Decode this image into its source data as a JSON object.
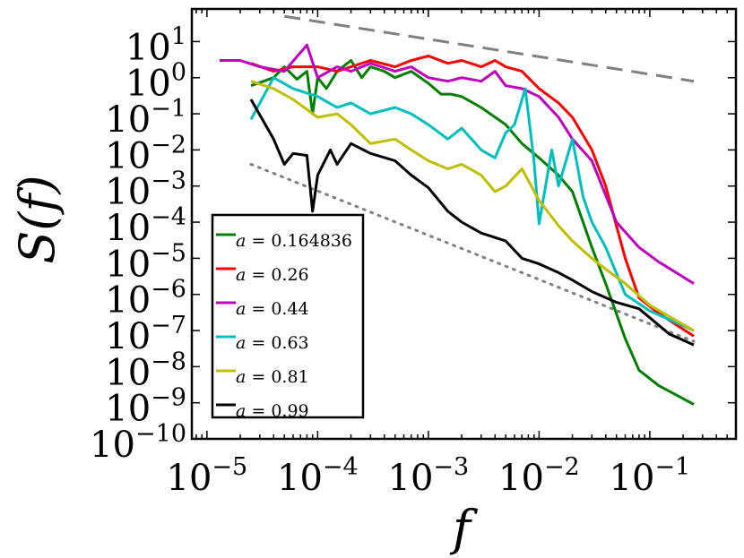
{
  "chart_data": {
    "type": "line",
    "xscale": "log",
    "yscale": "log",
    "xlim": [
      7.3e-06,
      0.6
    ],
    "ylim": [
      1e-10,
      80
    ],
    "xlabel": "f",
    "ylabel": "S(f)",
    "x_tick_exponents": [
      -5,
      -4,
      -3,
      -2,
      -1
    ],
    "y_tick_exponents": [
      1,
      0,
      -1,
      -2,
      -3,
      -4,
      -5,
      -6,
      -7,
      -8,
      -9,
      -10
    ],
    "tick_base": "10",
    "legend": {
      "location": "lower-left"
    },
    "series": [
      {
        "name": "a = 0.164836",
        "var": "a",
        "value": "0.164836",
        "color": "#008000",
        "points": [
          [
            2.5e-05,
            0.6
          ],
          [
            4e-05,
            1.0
          ],
          [
            5e-05,
            2.0
          ],
          [
            6.5e-05,
            0.9
          ],
          [
            8e-05,
            1.5
          ],
          [
            9e-05,
            0.1
          ],
          [
            0.0001,
            1.0
          ],
          [
            0.00012,
            0.5
          ],
          [
            0.00015,
            1.5
          ],
          [
            0.0002,
            3.0
          ],
          [
            0.00025,
            1.0
          ],
          [
            0.0003,
            2.0
          ],
          [
            0.0004,
            1.5
          ],
          [
            0.0005,
            1.0
          ],
          [
            0.0007,
            1.5
          ],
          [
            0.001,
            0.7
          ],
          [
            0.0013,
            0.35
          ],
          [
            0.0016,
            0.35
          ],
          [
            0.002,
            0.3
          ],
          [
            0.003,
            0.15
          ],
          [
            0.005,
            0.05
          ],
          [
            0.007,
            0.015
          ],
          [
            0.01,
            0.006
          ],
          [
            0.015,
            0.002
          ],
          [
            0.02,
            0.0007
          ],
          [
            0.03,
            2e-05
          ],
          [
            0.04,
            2e-06
          ],
          [
            0.06,
            6e-08
          ],
          [
            0.08,
            8e-09
          ],
          [
            0.12,
            3e-09
          ],
          [
            0.25,
            9e-10
          ]
        ]
      },
      {
        "name": "a = 0.26",
        "var": "a",
        "value": "0.26",
        "color": "#ff0000",
        "points": [
          [
            2.5e-05,
            2.5
          ],
          [
            4e-05,
            1.5
          ],
          [
            6e-05,
            2.0
          ],
          [
            0.0001,
            2.0
          ],
          [
            0.00015,
            1.5
          ],
          [
            0.0002,
            2.0
          ],
          [
            0.0003,
            3.0
          ],
          [
            0.0005,
            2.0
          ],
          [
            0.0007,
            3.0
          ],
          [
            0.001,
            4.0
          ],
          [
            0.0015,
            2.5
          ],
          [
            0.002,
            3.0
          ],
          [
            0.003,
            2.0
          ],
          [
            0.004,
            3.0
          ],
          [
            0.005,
            2.0
          ],
          [
            0.007,
            1.5
          ],
          [
            0.01,
            0.5
          ],
          [
            0.015,
            0.2
          ],
          [
            0.02,
            0.08
          ],
          [
            0.03,
            0.01
          ],
          [
            0.04,
            0.001
          ],
          [
            0.06,
            1e-05
          ],
          [
            0.08,
            8e-07
          ],
          [
            0.12,
            3e-07
          ],
          [
            0.25,
            7e-08
          ]
        ]
      },
      {
        "name": "a = 0.44",
        "var": "a",
        "value": "0.44",
        "color": "#bf00bf",
        "points": [
          [
            1.3e-05,
            3.0
          ],
          [
            2e-05,
            3.0
          ],
          [
            3e-05,
            2.0
          ],
          [
            5e-05,
            1.5
          ],
          [
            8e-05,
            8.0
          ],
          [
            0.0001,
            1.0
          ],
          [
            0.00015,
            2.0
          ],
          [
            0.0002,
            1.5
          ],
          [
            0.0003,
            2.5
          ],
          [
            0.0005,
            1.5
          ],
          [
            0.0007,
            2.0
          ],
          [
            0.001,
            1.0
          ],
          [
            0.0015,
            0.8
          ],
          [
            0.002,
            1.0
          ],
          [
            0.003,
            0.8
          ],
          [
            0.004,
            1.5
          ],
          [
            0.005,
            0.6
          ],
          [
            0.007,
            0.5
          ],
          [
            0.01,
            0.3
          ],
          [
            0.015,
            0.08
          ],
          [
            0.02,
            0.02
          ],
          [
            0.03,
            0.005
          ],
          [
            0.05,
            0.0001
          ],
          [
            0.08,
            2e-05
          ],
          [
            0.12,
            8e-06
          ],
          [
            0.25,
            2e-06
          ]
        ]
      },
      {
        "name": "a = 0.63",
        "var": "a",
        "value": "0.63",
        "color": "#00bfbf",
        "points": [
          [
            2.5e-05,
            0.07
          ],
          [
            4e-05,
            1.0
          ],
          [
            6e-05,
            0.5
          ],
          [
            0.0001,
            0.3
          ],
          [
            0.00015,
            0.15
          ],
          [
            0.0002,
            0.2
          ],
          [
            0.0003,
            0.1
          ],
          [
            0.0005,
            0.15
          ],
          [
            0.0007,
            0.1
          ],
          [
            0.001,
            0.05
          ],
          [
            0.0015,
            0.02
          ],
          [
            0.002,
            0.04
          ],
          [
            0.003,
            0.01
          ],
          [
            0.004,
            0.006
          ],
          [
            0.005,
            0.03
          ],
          [
            0.006,
            0.05
          ],
          [
            0.0075,
            0.5
          ],
          [
            0.009,
            0.005
          ],
          [
            0.01,
            9e-05
          ],
          [
            0.013,
            0.01
          ],
          [
            0.015,
            0.001
          ],
          [
            0.02,
            0.02
          ],
          [
            0.025,
            0.0005
          ],
          [
            0.03,
            0.0001
          ],
          [
            0.04,
            2e-05
          ],
          [
            0.06,
            1e-06
          ],
          [
            0.1,
            3.5e-07
          ],
          [
            0.25,
            1e-07
          ]
        ]
      },
      {
        "name": "a = 0.81",
        "var": "a",
        "value": "0.81",
        "color": "#bfbf00",
        "points": [
          [
            2.5e-05,
            0.8
          ],
          [
            4e-05,
            0.5
          ],
          [
            6e-05,
            0.25
          ],
          [
            0.0001,
            0.08
          ],
          [
            0.00015,
            0.1
          ],
          [
            0.0002,
            0.05
          ],
          [
            0.0003,
            0.015
          ],
          [
            0.0005,
            0.02
          ],
          [
            0.0007,
            0.01
          ],
          [
            0.001,
            0.005
          ],
          [
            0.0015,
            0.003
          ],
          [
            0.002,
            0.004
          ],
          [
            0.003,
            0.002
          ],
          [
            0.004,
            0.0007
          ],
          [
            0.005,
            0.001
          ],
          [
            0.007,
            0.003
          ],
          [
            0.01,
            0.0004
          ],
          [
            0.015,
            8e-05
          ],
          [
            0.02,
            3e-05
          ],
          [
            0.03,
            1e-05
          ],
          [
            0.04,
            5e-06
          ],
          [
            0.06,
            2e-06
          ],
          [
            0.1,
            5e-07
          ],
          [
            0.25,
            1e-07
          ]
        ]
      },
      {
        "name": "a = 0.99",
        "var": "a",
        "value": "0.99",
        "color": "#000000",
        "points": [
          [
            2.5e-05,
            0.25
          ],
          [
            4e-05,
            0.02
          ],
          [
            5e-05,
            0.004
          ],
          [
            6e-05,
            0.008
          ],
          [
            8e-05,
            0.007
          ],
          [
            9e-05,
            0.0002
          ],
          [
            0.0001,
            0.002
          ],
          [
            0.00013,
            0.01
          ],
          [
            0.00015,
            0.004
          ],
          [
            0.0002,
            0.015
          ],
          [
            0.0003,
            0.008
          ],
          [
            0.0005,
            0.005
          ],
          [
            0.0007,
            0.002
          ],
          [
            0.001,
            0.0009
          ],
          [
            0.0015,
            0.0002
          ],
          [
            0.002,
            0.0001
          ],
          [
            0.003,
            5e-05
          ],
          [
            0.005,
            3e-05
          ],
          [
            0.007,
            1e-05
          ],
          [
            0.01,
            7e-06
          ],
          [
            0.015,
            4e-06
          ],
          [
            0.02,
            2.5e-06
          ],
          [
            0.03,
            1.2e-06
          ],
          [
            0.05,
            6e-07
          ],
          [
            0.08,
            4e-07
          ],
          [
            0.15,
            8e-08
          ],
          [
            0.25,
            4e-08
          ]
        ]
      }
    ],
    "reference_lines": [
      {
        "style": "dashed",
        "color": "#808080",
        "points": [
          [
            5e-05,
            50.0
          ],
          [
            0.25,
            0.8
          ]
        ]
      },
      {
        "style": "dotted",
        "color": "#808080",
        "points": [
          [
            2.5e-05,
            0.004
          ],
          [
            0.25,
            5e-08
          ]
        ]
      }
    ]
  }
}
